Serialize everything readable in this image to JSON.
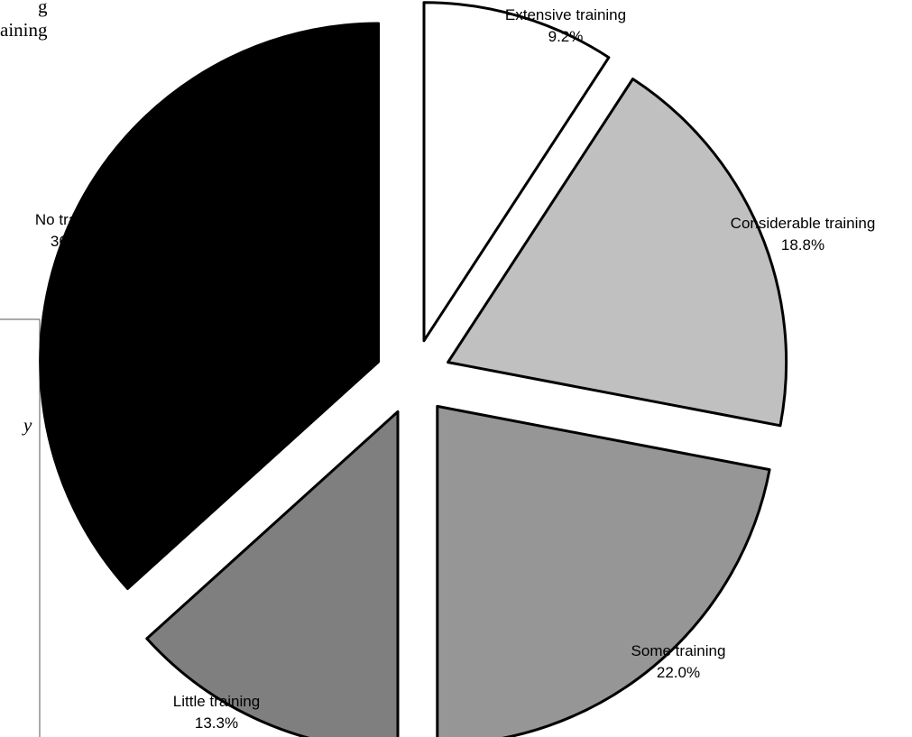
{
  "page_fragments": {
    "line1": "g",
    "line2": "aining",
    "line3": "y"
  },
  "chart_data": {
    "type": "pie",
    "exploded": true,
    "slices": [
      {
        "label": "Extensive training",
        "value": 9.2,
        "value_label": "9.2%",
        "color": "#ffffff"
      },
      {
        "label": "Considerable training",
        "value": 18.8,
        "value_label": "18.8%",
        "color": "#c0c0c0"
      },
      {
        "label": "Some training",
        "value": 22.0,
        "value_label": "22.0%",
        "color": "#969696"
      },
      {
        "label": "Little training",
        "value": 13.3,
        "value_label": "13.3%",
        "color": "#7f7f7f"
      },
      {
        "label": "No training",
        "value": 36.7,
        "value_label": "36.7%",
        "color": "#000000"
      }
    ]
  }
}
